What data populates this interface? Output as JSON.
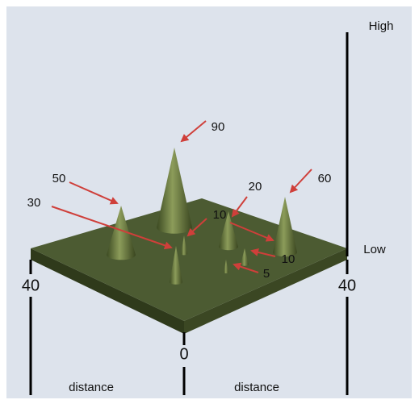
{
  "scale": {
    "high": "High",
    "low": "Low"
  },
  "cones": [
    {
      "label": 90
    },
    {
      "label": 50
    },
    {
      "label": 30
    },
    {
      "label": 20
    },
    {
      "label": 60
    },
    {
      "label": 10
    },
    {
      "label": 10
    },
    {
      "label": 5
    }
  ],
  "axes": {
    "left_end": 40,
    "right_end": 40,
    "origin": 0,
    "left_label": "distance",
    "right_label": "distance"
  }
}
